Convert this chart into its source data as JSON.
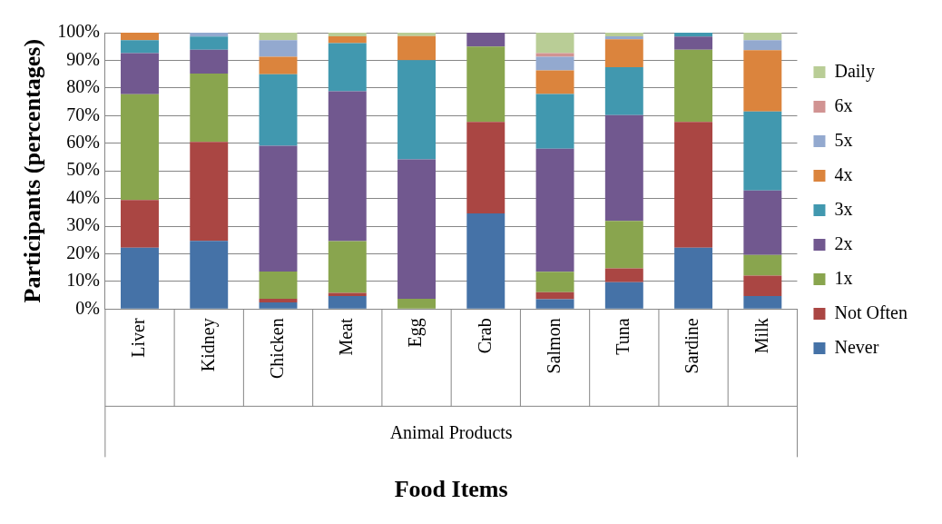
{
  "chart_data": {
    "type": "bar",
    "stacked": true,
    "xlabel": "Food Items",
    "ylabel": "Participants (percentages)",
    "annotations": [
      "Animal Products"
    ],
    "categories": [
      "Liver",
      "Kidney",
      "Chicken",
      "Meat",
      "Egg",
      "Crab",
      "Salmon",
      "Tuna",
      "Sardine",
      "Milk"
    ],
    "ylim": [
      0,
      100
    ],
    "yticks": [
      {
        "value": 0,
        "label": "0%"
      },
      {
        "value": 10,
        "label": "10%"
      },
      {
        "value": 20,
        "label": "20%"
      },
      {
        "value": 30,
        "label": "30%"
      },
      {
        "value": 40,
        "label": "40%"
      },
      {
        "value": 50,
        "label": "50%"
      },
      {
        "value": 60,
        "label": "60%"
      },
      {
        "value": 70,
        "label": "70%"
      },
      {
        "value": 80,
        "label": "80%"
      },
      {
        "value": 90,
        "label": "90%"
      },
      {
        "value": 100,
        "label": "100%"
      }
    ],
    "grid": "y",
    "legend": "right",
    "series": [
      {
        "name": "Never",
        "color": "#4572a7",
        "values": [
          22.2,
          24.7,
          2.4,
          4.7,
          0,
          34.6,
          3.6,
          9.7,
          22.2,
          4.7
        ]
      },
      {
        "name": "Not Often",
        "color": "#aa4643",
        "values": [
          17.3,
          35.8,
          1.3,
          1.2,
          0,
          33.1,
          2.5,
          5.0,
          45.5,
          7.4
        ]
      },
      {
        "name": "1x",
        "color": "#89a54e",
        "values": [
          38.2,
          24.7,
          9.9,
          18.7,
          3.7,
          27.3,
          7.4,
          17.2,
          26.1,
          7.5
        ]
      },
      {
        "name": "2x",
        "color": "#71588f",
        "values": [
          14.9,
          8.6,
          45.5,
          54.2,
          50.5,
          5.0,
          44.5,
          38.3,
          4.8,
          23.3
        ]
      },
      {
        "name": "3x",
        "color": "#4198af",
        "values": [
          4.7,
          4.8,
          25.9,
          17.4,
          35.9,
          0,
          19.8,
          17.3,
          1.4,
          28.6
        ]
      },
      {
        "name": "4x",
        "color": "#db843d",
        "values": [
          2.7,
          0,
          6.3,
          2.5,
          8.7,
          0,
          8.6,
          10.1,
          0,
          22.2
        ]
      },
      {
        "name": "5x",
        "color": "#93a9cf",
        "values": [
          0,
          1.4,
          6.0,
          0,
          0,
          0,
          4.9,
          1.1,
          0,
          3.6
        ]
      },
      {
        "name": "6x",
        "color": "#d19392",
        "values": [
          0,
          0,
          0,
          0,
          0,
          0,
          1.3,
          0,
          0,
          0
        ]
      },
      {
        "name": "Daily",
        "color": "#b9cd96",
        "values": [
          0,
          0,
          2.7,
          1.3,
          1.2,
          0,
          7.4,
          1.3,
          0,
          2.7
        ]
      }
    ]
  }
}
